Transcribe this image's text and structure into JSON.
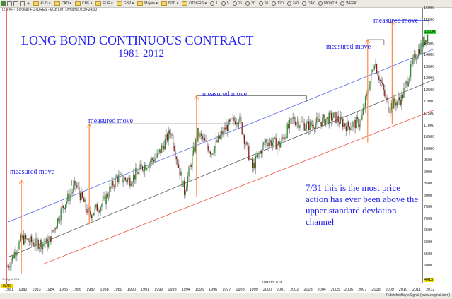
{
  "toolbar": {
    "folders": [
      "AUD",
      "CAD",
      "CHF",
      "EUR",
      "GBP",
      "Majors",
      "NZD",
      "OTHERS"
    ],
    "intervals": [
      "1",
      "5",
      "15",
      "30",
      "60",
      "120",
      "240",
      "DAY",
      "MONTH",
      "WEEK"
    ]
  },
  "chart_header": "(ZB #F - T-BOND FUTURES - ECBT,M) Dynamic,0:00-24:00",
  "annotations": {
    "title": "LONG BOND CONTINUOUS CONTRACT",
    "subtitle": "1981-2012",
    "measured_move_label": "measured move",
    "note": "7/31 this is the most price action has ever been above the upper standard deviation channel"
  },
  "footer": {
    "date_badge": "03/81",
    "scale_note": "1 1000 for 829",
    "copyright": "© eSignal, 2011",
    "published": "Published by eSignal (www.esignal.com)"
  },
  "colors": {
    "upper_channel": "#5566ee",
    "mid_channel": "#555555",
    "lower_channel": "#ee5544",
    "measured_arrow": "#ff8844",
    "text_annotation": "#2222ee",
    "bull_candle": "#2e8b2e",
    "bear_candle": "#8b1a1a",
    "current_price_bg": "#33dd33",
    "low_price_bg": "#f5e400"
  },
  "chart_data": {
    "type": "candlestick",
    "title": "LONG BOND CONTINUOUS CONTRACT 1981-2012",
    "instrument": "T-BOND FUTURES (ZB #F)",
    "periodicity": "Monthly",
    "xlabel": "",
    "ylabel": "",
    "x_ticks": [
      "1981",
      "1982",
      "1983",
      "1984",
      "1985",
      "1986",
      "1987",
      "1988",
      "1989",
      "1990",
      "1991",
      "1992",
      "1993",
      "1994",
      "1995",
      "1996",
      "1997",
      "1998",
      "1999",
      "2000",
      "2001",
      "2002",
      "2003",
      "2004",
      "2005",
      "2006",
      "2007",
      "2008",
      "2009",
      "2010",
      "2011",
      "2012"
    ],
    "y_ticks": [
      16000,
      15500,
      15000,
      14500,
      14000,
      13500,
      13000,
      12500,
      12000,
      11500,
      11000,
      10500,
      10000,
      9500,
      9000,
      8500,
      8000,
      7500,
      7000,
      6500,
      6000,
      5500,
      5000
    ],
    "ylim": [
      4415,
      16000
    ],
    "current_price_label": "15000",
    "low_price_label": "4415",
    "approx_yearly_closes": {
      "x": [
        1981,
        1982,
        1983,
        1984,
        1985,
        1986,
        1987,
        1988,
        1989,
        1990,
        1991,
        1992,
        1993,
        1994,
        1995,
        1996,
        1997,
        1998,
        1999,
        2000,
        2001,
        2002,
        2003,
        2004,
        2005,
        2006,
        2007,
        2008,
        2009,
        2010,
        2011,
        2012
      ],
      "y": [
        5000,
        6200,
        6000,
        6000,
        7500,
        8500,
        7200,
        7700,
        8800,
        8700,
        9300,
        9700,
        10800,
        8200,
        10700,
        9900,
        10900,
        11400,
        9200,
        10400,
        10200,
        11300,
        11000,
        11200,
        11400,
        11000,
        11200,
        13800,
        11800,
        12200,
        14000,
        15000
      ]
    },
    "trend_channel": {
      "upper": {
        "from": [
          1981,
          6900
        ],
        "to": [
          2012,
          14300
        ]
      },
      "middle": {
        "from": [
          1981,
          5400
        ],
        "to": [
          2012,
          13000
        ]
      },
      "lower": {
        "from": [
          1981,
          4500
        ],
        "to": [
          2012,
          11700
        ]
      }
    },
    "measured_moves": [
      {
        "label": "measured move",
        "arrow_year": 1982,
        "base": 4700,
        "target": 8700
      },
      {
        "label": "measured move",
        "arrow_year": 1987,
        "base": 6800,
        "target": 11100
      },
      {
        "label": "measured move",
        "arrow_year": 1994.9,
        "base": 8000,
        "target": 12300
      },
      {
        "label": "measured move",
        "arrow_year": 2007.5,
        "base": 10300,
        "target": 14700
      },
      {
        "label": "measured move",
        "arrow_year": 2009.3,
        "base": 11100,
        "target": 15500
      }
    ],
    "annotations": [
      "7/31 this is the most price action has ever been above the upper standard deviation channel"
    ],
    "grid": false,
    "legend": null
  }
}
